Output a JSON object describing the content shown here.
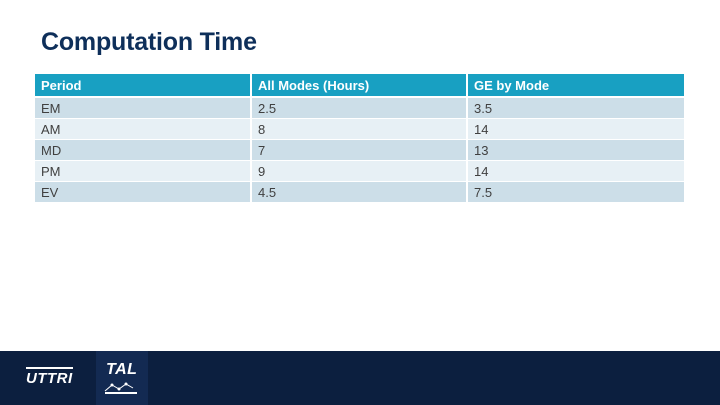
{
  "slide": {
    "title": "Computation Time"
  },
  "table": {
    "headers": [
      "Period",
      "All Modes (Hours)",
      "GE by Mode"
    ],
    "rows": [
      [
        "EM",
        "2.5",
        "3.5"
      ],
      [
        "AM",
        "8",
        "14"
      ],
      [
        "MD",
        "7",
        "13"
      ],
      [
        "PM",
        "9",
        "14"
      ],
      [
        "EV",
        "4.5",
        "7.5"
      ]
    ]
  },
  "footer": {
    "logos": [
      {
        "text": "UTTRI"
      },
      {
        "text": "TAL"
      }
    ]
  },
  "colors": {
    "title": "#0e2f5a",
    "header_bg": "#18a0c2",
    "row_dark": "#ccdee8",
    "row_light": "#e7f0f5",
    "footer_bg": "#0c1f3f"
  }
}
